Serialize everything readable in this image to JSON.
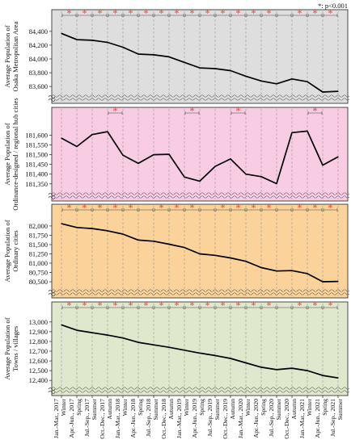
{
  "legend_note": "*: p<0.001",
  "colors": {
    "panel_backgrounds": [
      "#dedede",
      "#f8cce3",
      "#fbd39a",
      "#dfe8cc"
    ],
    "line": "#000000",
    "significance": "#e0433a"
  },
  "x_labels": [
    [
      "Jan.-Mar., 2017",
      "Winter"
    ],
    [
      "Apr.-Jun., 2017",
      "Spring"
    ],
    [
      "Jul.-Sep., 2017",
      "Summer"
    ],
    [
      "Oct.-Dec., 2017",
      "Autumn"
    ],
    [
      "Jan.-Mar., 2018",
      "Winter"
    ],
    [
      "Apr.-Jun., 2018",
      "Spring"
    ],
    [
      "Jul.-Sep., 2018",
      "Summer"
    ],
    [
      "Oct.-Dec., 2018",
      "Autumn"
    ],
    [
      "Jan.-Mar., 2019",
      "Winter"
    ],
    [
      "Apr.-Jun., 2019",
      "Spring"
    ],
    [
      "Jul.-Sep., 2019",
      "Summer"
    ],
    [
      "Oct.-Dec., 2019",
      "Autumn"
    ],
    [
      "Jan.-Mar., 2020",
      "Winter"
    ],
    [
      "Apr.-Jun., 2020",
      "Spring"
    ],
    [
      "Jul.-Sep., 2020",
      "Summer"
    ],
    [
      "Oct.-Dec., 2020",
      "Autumn"
    ],
    [
      "Jan.-Mar., 2021",
      "Winter"
    ],
    [
      "Apr.-Jun., 2021",
      "Spring"
    ],
    [
      "Jul.-Sep., 2021",
      "Summer"
    ]
  ],
  "chart_data": [
    {
      "type": "line",
      "ylabel": [
        "Average Population of",
        "Osaka Metropolitan Area"
      ],
      "yticks": [
        83600,
        83800,
        84000,
        84200,
        84400
      ],
      "ylim": [
        83520,
        84480
      ],
      "values": [
        84370,
        84280,
        84270,
        84240,
        84170,
        84070,
        84060,
        84030,
        83950,
        83870,
        83860,
        83830,
        83750,
        83680,
        83640,
        83710,
        83670,
        83520,
        83530
      ],
      "significant_pairs": [
        [
          0,
          1
        ],
        [
          1,
          2
        ],
        [
          2,
          3
        ],
        [
          3,
          4
        ],
        [
          4,
          5
        ],
        [
          5,
          6
        ],
        [
          6,
          7
        ],
        [
          7,
          8
        ],
        [
          8,
          9
        ],
        [
          9,
          10
        ],
        [
          10,
          11
        ],
        [
          11,
          12
        ],
        [
          12,
          13
        ],
        [
          13,
          14
        ],
        [
          14,
          15
        ],
        [
          15,
          16
        ],
        [
          16,
          17
        ],
        [
          17,
          18
        ]
      ],
      "significant_starred": [
        true,
        true,
        true,
        true,
        true,
        true,
        true,
        true,
        true,
        true,
        true,
        true,
        true,
        true,
        false,
        true,
        true,
        true
      ]
    },
    {
      "type": "line",
      "ylabel": [
        "Average Population of",
        "Ordinance-designed / regional hub cities"
      ],
      "yticks": [
        181350,
        181400,
        181450,
        181500,
        181550,
        181600
      ],
      "ylim": [
        181320,
        181660
      ],
      "values": [
        181585,
        181542,
        181603,
        181618,
        181497,
        181455,
        181500,
        181502,
        181385,
        181364,
        181440,
        181478,
        181400,
        181387,
        181351,
        181613,
        181621,
        181446,
        181489
      ],
      "significant_pairs": [
        [
          3,
          4
        ],
        [
          8,
          9
        ],
        [
          11,
          12
        ],
        [
          16,
          17
        ]
      ],
      "significant_starred": [
        true,
        true,
        true,
        true
      ]
    },
    {
      "type": "line",
      "ylabel": [
        "Average Population of",
        "Ordinary cities"
      ],
      "yticks": [
        80500,
        80750,
        81000,
        81250,
        81500,
        81750,
        82000
      ],
      "ylim": [
        80370,
        82150
      ],
      "values": [
        82060,
        81960,
        81930,
        81870,
        81780,
        81620,
        81590,
        81510,
        81420,
        81250,
        81210,
        81140,
        81050,
        80880,
        80790,
        80800,
        80720,
        80500,
        80510
      ],
      "significant_pairs": [
        [
          0,
          1
        ],
        [
          1,
          2
        ],
        [
          2,
          3
        ],
        [
          3,
          4
        ],
        [
          4,
          5
        ],
        [
          5,
          6
        ],
        [
          6,
          7
        ],
        [
          7,
          8
        ],
        [
          8,
          9
        ],
        [
          9,
          10
        ],
        [
          10,
          11
        ],
        [
          11,
          12
        ],
        [
          12,
          13
        ],
        [
          13,
          14
        ],
        [
          14,
          15
        ],
        [
          15,
          16
        ],
        [
          16,
          17
        ],
        [
          17,
          18
        ]
      ],
      "significant_starred": [
        true,
        true,
        true,
        true,
        true,
        false,
        true,
        true,
        true,
        false,
        true,
        true,
        true,
        true,
        false,
        true,
        true,
        true
      ]
    },
    {
      "type": "line",
      "ylabel": [
        "Average Population of",
        "Towns / villages"
      ],
      "yticks": [
        12400,
        12500,
        12600,
        12700,
        12800,
        12900,
        13000
      ],
      "ylim": [
        12360,
        13040
      ],
      "values": [
        12970,
        12915,
        12890,
        12865,
        12835,
        12790,
        12765,
        12740,
        12710,
        12680,
        12655,
        12625,
        12580,
        12535,
        12510,
        12525,
        12500,
        12450,
        12425
      ],
      "significant_pairs": [
        [
          0,
          1
        ],
        [
          1,
          2
        ],
        [
          2,
          3
        ],
        [
          3,
          4
        ],
        [
          4,
          5
        ],
        [
          5,
          6
        ],
        [
          6,
          7
        ],
        [
          7,
          8
        ],
        [
          8,
          9
        ],
        [
          9,
          10
        ],
        [
          10,
          11
        ],
        [
          11,
          12
        ],
        [
          12,
          13
        ],
        [
          13,
          14
        ],
        [
          14,
          15
        ],
        [
          15,
          16
        ],
        [
          16,
          17
        ],
        [
          17,
          18
        ]
      ],
      "significant_starred": [
        true,
        true,
        true,
        true,
        true,
        true,
        true,
        true,
        true,
        true,
        true,
        true,
        true,
        true,
        false,
        true,
        true,
        true
      ]
    }
  ]
}
